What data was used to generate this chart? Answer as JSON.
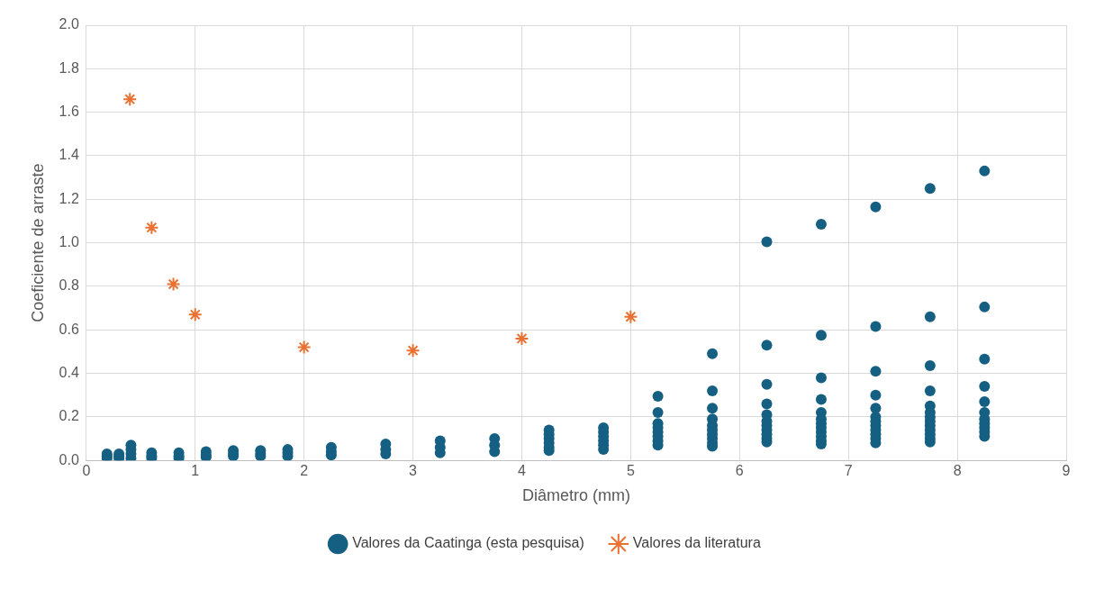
{
  "chart_data": {
    "type": "scatter",
    "xlabel": "Diâmetro (mm)",
    "ylabel": "Coeficiente de arraste",
    "xlim": [
      0,
      9
    ],
    "xticks": [
      0,
      1,
      2,
      3,
      4,
      5,
      6,
      7,
      8,
      9
    ],
    "ylim": [
      0,
      2
    ],
    "yticks": [
      {
        "value": 0,
        "label": "0.0"
      },
      {
        "value": 0.2,
        "label": "0.2"
      },
      {
        "value": 0.4,
        "label": "0.4"
      },
      {
        "value": 0.6,
        "label": "0.6"
      },
      {
        "value": 0.8,
        "label": "0.8"
      },
      {
        "value": 1,
        "label": "1.0"
      },
      {
        "value": 1.2,
        "label": "1.2"
      },
      {
        "value": 1.4,
        "label": "1.4"
      },
      {
        "value": 1.6,
        "label": "1.6"
      },
      {
        "value": 1.8,
        "label": "1.8"
      },
      {
        "value": 2,
        "label": "2.0"
      }
    ],
    "grid": true,
    "legend": "bottom",
    "series": [
      {
        "name": "Valores da Caatinga (esta pesquisa)",
        "color": "#156082",
        "marker": "circle",
        "x": [
          0.19,
          0.19,
          0.19,
          0.3,
          0.3,
          0.3,
          0.41,
          0.41,
          0.41,
          0.41,
          0.6,
          0.6,
          0.6,
          0.85,
          0.85,
          0.85,
          1.1,
          1.1,
          1.1,
          1.35,
          1.35,
          1.35,
          1.6,
          1.6,
          1.6,
          1.85,
          1.85,
          1.85,
          2.25,
          2.25,
          2.25,
          2.75,
          2.75,
          2.75,
          3.25,
          3.25,
          3.25,
          3.75,
          3.75,
          3.75,
          4.25,
          4.25,
          4.25,
          4.25,
          4.25,
          4.25,
          4.75,
          4.75,
          4.75,
          4.75,
          4.75,
          4.75,
          5.25,
          5.25,
          5.25,
          5.25,
          5.25,
          5.25,
          5.25,
          5.25,
          5.75,
          5.75,
          5.75,
          5.75,
          5.75,
          5.75,
          5.75,
          5.75,
          5.75,
          5.75,
          6.25,
          6.25,
          6.25,
          6.25,
          6.25,
          6.25,
          6.25,
          6.25,
          6.25,
          6.25,
          6.25,
          6.75,
          6.75,
          6.75,
          6.75,
          6.75,
          6.75,
          6.75,
          6.75,
          6.75,
          6.75,
          6.75,
          6.75,
          7.25,
          7.25,
          7.25,
          7.25,
          7.25,
          7.25,
          7.25,
          7.25,
          7.25,
          7.25,
          7.25,
          7.25,
          7.75,
          7.75,
          7.75,
          7.75,
          7.75,
          7.75,
          7.75,
          7.75,
          7.75,
          7.75,
          7.75,
          7.75,
          7.75,
          8.25,
          8.25,
          8.25,
          8.25,
          8.25,
          8.25,
          8.25,
          8.25,
          8.25,
          8.25,
          8.25
        ],
        "values": [
          0.01,
          0.02,
          0.03,
          0.01,
          0.02,
          0.03,
          0.01,
          0.03,
          0.05,
          0.07,
          0.01,
          0.02,
          0.035,
          0.01,
          0.02,
          0.035,
          0.015,
          0.025,
          0.04,
          0.02,
          0.03,
          0.045,
          0.02,
          0.03,
          0.045,
          0.02,
          0.035,
          0.05,
          0.025,
          0.04,
          0.06,
          0.03,
          0.05,
          0.075,
          0.035,
          0.06,
          0.09,
          0.04,
          0.07,
          0.1,
          0.045,
          0.06,
          0.08,
          0.1,
          0.12,
          0.14,
          0.05,
          0.07,
          0.09,
          0.11,
          0.13,
          0.15,
          0.07,
          0.09,
          0.11,
          0.13,
          0.15,
          0.17,
          0.22,
          0.295,
          0.065,
          0.08,
          0.1,
          0.12,
          0.14,
          0.16,
          0.19,
          0.24,
          0.32,
          0.49,
          0.085,
          0.1,
          0.12,
          0.14,
          0.16,
          0.18,
          0.21,
          0.26,
          0.35,
          0.53,
          1.005,
          0.075,
          0.09,
          0.11,
          0.13,
          0.15,
          0.17,
          0.19,
          0.22,
          0.28,
          0.38,
          0.575,
          1.085,
          0.08,
          0.1,
          0.12,
          0.14,
          0.16,
          0.18,
          0.2,
          0.24,
          0.3,
          0.41,
          0.615,
          1.165,
          0.085,
          0.1,
          0.12,
          0.14,
          0.16,
          0.18,
          0.2,
          0.22,
          0.25,
          0.32,
          0.435,
          0.66,
          1.25,
          0.11,
          0.13,
          0.15,
          0.17,
          0.19,
          0.22,
          0.27,
          0.34,
          0.465,
          0.705,
          1.33
        ]
      },
      {
        "name": "Valores da literatura",
        "color": "#e97132",
        "marker": "cross",
        "x": [
          0.4,
          0.6,
          0.8,
          1,
          2,
          3,
          4,
          5
        ],
        "values": [
          1.66,
          1.07,
          0.81,
          0.67,
          0.52,
          0.505,
          0.56,
          0.66
        ]
      }
    ]
  }
}
